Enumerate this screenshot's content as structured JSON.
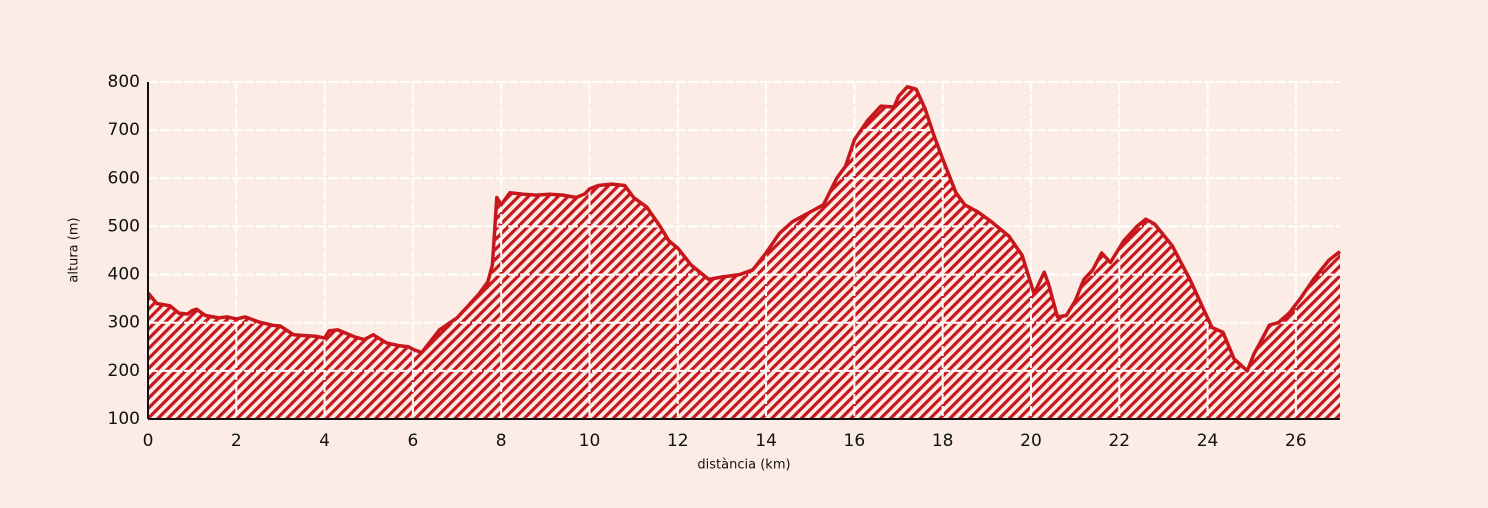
{
  "chart_data": {
    "type": "area",
    "xlabel": "distància (km)",
    "ylabel": "altura (m)",
    "x": [
      0,
      0.2,
      0.5,
      0.7,
      0.9,
      1.0,
      1.1,
      1.3,
      1.6,
      1.8,
      2.0,
      2.2,
      2.5,
      2.8,
      3.0,
      3.3,
      3.6,
      3.8,
      4.0,
      4.1,
      4.3,
      4.7,
      4.9,
      5.1,
      5.4,
      5.7,
      5.9,
      6.0,
      6.2,
      6.6,
      7.0,
      7.2,
      7.5,
      7.7,
      7.8,
      7.9,
      8.0,
      8.2,
      8.5,
      8.8,
      9.1,
      9.4,
      9.7,
      9.9,
      10.0,
      10.2,
      10.5,
      10.8,
      11.0,
      11.3,
      11.6,
      11.8,
      12.0,
      12.3,
      12.7,
      13.0,
      13.4,
      13.7,
      14.0,
      14.3,
      14.6,
      14.8,
      15.0,
      15.3,
      15.6,
      15.8,
      16.0,
      16.3,
      16.6,
      16.9,
      17.0,
      17.2,
      17.4,
      17.6,
      17.8,
      18.0,
      18.3,
      18.5,
      18.8,
      19.1,
      19.5,
      19.8,
      20.07,
      20.3,
      20.4,
      20.6,
      20.8,
      21.0,
      21.2,
      21.4,
      21.6,
      21.8,
      22.1,
      22.4,
      22.6,
      22.8,
      23.2,
      23.6,
      24.1,
      24.35,
      24.6,
      24.9,
      25.05,
      25.2,
      25.4,
      25.6,
      25.85,
      26.1,
      26.4,
      26.75,
      27.0
    ],
    "values": [
      362,
      340,
      335,
      320,
      318,
      325,
      328,
      315,
      310,
      312,
      308,
      312,
      302,
      295,
      293,
      275,
      273,
      272,
      268,
      283,
      285,
      270,
      265,
      275,
      258,
      252,
      250,
      245,
      238,
      285,
      310,
      330,
      360,
      385,
      420,
      560,
      545,
      570,
      567,
      565,
      567,
      565,
      560,
      568,
      578,
      585,
      588,
      585,
      560,
      540,
      500,
      470,
      455,
      420,
      390,
      395,
      400,
      410,
      445,
      485,
      510,
      520,
      530,
      545,
      600,
      625,
      680,
      720,
      750,
      748,
      770,
      790,
      785,
      745,
      690,
      640,
      570,
      545,
      530,
      510,
      480,
      440,
      360,
      405,
      380,
      312,
      315,
      345,
      390,
      410,
      445,
      425,
      470,
      500,
      515,
      505,
      460,
      390,
      290,
      280,
      225,
      200,
      235,
      260,
      295,
      300,
      320,
      350,
      390,
      430,
      448
    ],
    "color": "#c8161d",
    "xlim": [
      0,
      27
    ],
    "xticks": [
      0,
      2,
      4,
      6,
      8,
      10,
      12,
      14,
      16,
      18,
      20,
      22,
      24,
      26
    ],
    "ylim": [
      100,
      800
    ],
    "yticks": [
      100,
      200,
      300,
      400,
      500,
      600,
      700,
      800
    ],
    "grid": true
  }
}
